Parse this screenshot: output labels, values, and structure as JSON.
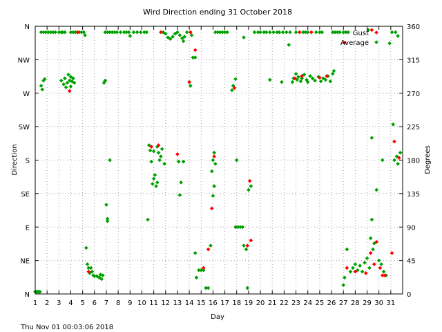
{
  "chart_data": {
    "type": "scatter",
    "title": "Wird Direction ending 31 October 2018",
    "xlabel": "Day",
    "ylabel_left": "Direction",
    "ylabel_right": "Degrees",
    "footer": "Thu Nov 01 00:03:06 2018",
    "xlim": [
      1,
      32
    ],
    "ylim": [
      0,
      360
    ],
    "grid": true,
    "legend_position": "top-right",
    "x_ticks": [
      {
        "value": 1,
        "label": "1"
      },
      {
        "value": 2,
        "label": "2"
      },
      {
        "value": 3,
        "label": "3"
      },
      {
        "value": 4,
        "label": "4"
      },
      {
        "value": 5,
        "label": "5"
      },
      {
        "value": 6,
        "label": "6"
      },
      {
        "value": 7,
        "label": "7"
      },
      {
        "value": 8,
        "label": "8"
      },
      {
        "value": 9,
        "label": "9"
      },
      {
        "value": 10,
        "label": "10"
      },
      {
        "value": 11,
        "label": "11"
      },
      {
        "value": 12,
        "label": "12"
      },
      {
        "value": 13,
        "label": "13"
      },
      {
        "value": 14,
        "label": "14"
      },
      {
        "value": 15,
        "label": "15"
      },
      {
        "value": 16,
        "label": "16"
      },
      {
        "value": 17,
        "label": "17"
      },
      {
        "value": 18,
        "label": "18"
      },
      {
        "value": 19,
        "label": "19"
      },
      {
        "value": 20,
        "label": "20"
      },
      {
        "value": 21,
        "label": "21"
      },
      {
        "value": 22,
        "label": "22"
      },
      {
        "value": 23,
        "label": "23"
      },
      {
        "value": 24,
        "label": "24"
      },
      {
        "value": 25,
        "label": "25"
      },
      {
        "value": 26,
        "label": "26"
      },
      {
        "value": 27,
        "label": "27"
      },
      {
        "value": 28,
        "label": "28"
      },
      {
        "value": 29,
        "label": "29"
      },
      {
        "value": 30,
        "label": "30"
      },
      {
        "value": 31,
        "label": "31"
      }
    ],
    "y_ticks_left": [
      {
        "value": 0,
        "label": "N"
      },
      {
        "value": 45,
        "label": "NE"
      },
      {
        "value": 90,
        "label": "E"
      },
      {
        "value": 135,
        "label": "SE"
      },
      {
        "value": 180,
        "label": "S"
      },
      {
        "value": 225,
        "label": "SW"
      },
      {
        "value": 270,
        "label": "W"
      },
      {
        "value": 315,
        "label": "NW"
      },
      {
        "value": 360,
        "label": "N"
      }
    ],
    "y_ticks_right": [
      {
        "value": 0,
        "label": "0"
      },
      {
        "value": 45,
        "label": "45"
      },
      {
        "value": 90,
        "label": "90"
      },
      {
        "value": 135,
        "label": "135"
      },
      {
        "value": 180,
        "label": "180"
      },
      {
        "value": 225,
        "label": "225"
      },
      {
        "value": 270,
        "label": "270"
      },
      {
        "value": 315,
        "label": "315"
      },
      {
        "value": 360,
        "label": "360"
      }
    ],
    "series": [
      {
        "name": "Gust",
        "color": "#ff0000",
        "points": [
          [
            3.9,
            273
          ],
          [
            4.6,
            352
          ],
          [
            5.5,
            30
          ],
          [
            10.8,
            198
          ],
          [
            11.4,
            200
          ],
          [
            11.6,
            352
          ],
          [
            13.0,
            188
          ],
          [
            14.0,
            285
          ],
          [
            14.1,
            352
          ],
          [
            14.5,
            328
          ],
          [
            15.2,
            35
          ],
          [
            15.6,
            60
          ],
          [
            15.9,
            115
          ],
          [
            16.1,
            185
          ],
          [
            17.8,
            277
          ],
          [
            18.9,
            65
          ],
          [
            19.1,
            152
          ],
          [
            19.2,
            72
          ],
          [
            22.9,
            290
          ],
          [
            23.3,
            352
          ],
          [
            23.5,
            293
          ],
          [
            24.3,
            352
          ],
          [
            25.0,
            291
          ],
          [
            25.6,
            293
          ],
          [
            27.1,
            338
          ],
          [
            27.3,
            35
          ],
          [
            28.0,
            30
          ],
          [
            28.9,
            28
          ],
          [
            29.3,
            55
          ],
          [
            29.4,
            355
          ],
          [
            29.6,
            40
          ],
          [
            29.8,
            70
          ],
          [
            30.1,
            35
          ],
          [
            30.3,
            25
          ],
          [
            30.5,
            25
          ],
          [
            31.1,
            55
          ],
          [
            31.3,
            205
          ],
          [
            31.7,
            183
          ]
        ]
      },
      {
        "name": "Average",
        "color": "#00a000",
        "points": [
          [
            1.0,
            3
          ],
          [
            1.1,
            3
          ],
          [
            1.2,
            3
          ],
          [
            1.3,
            3
          ],
          [
            1.4,
            3
          ],
          [
            1.5,
            280
          ],
          [
            1.6,
            275
          ],
          [
            1.7,
            287
          ],
          [
            1.8,
            289
          ],
          [
            1.5,
            352
          ],
          [
            1.7,
            352
          ],
          [
            1.9,
            352
          ],
          [
            2.1,
            352
          ],
          [
            2.3,
            352
          ],
          [
            2.5,
            352
          ],
          [
            2.7,
            352
          ],
          [
            3.0,
            352
          ],
          [
            3.2,
            352
          ],
          [
            3.3,
            352
          ],
          [
            3.5,
            352
          ],
          [
            3.2,
            287
          ],
          [
            3.4,
            282
          ],
          [
            3.5,
            290
          ],
          [
            3.7,
            284
          ],
          [
            3.8,
            295
          ],
          [
            3.9,
            287
          ],
          [
            4.0,
            292
          ],
          [
            4.1,
            286
          ],
          [
            4.2,
            290
          ],
          [
            4.3,
            284
          ],
          [
            3.6,
            278
          ],
          [
            4.0,
            279
          ],
          [
            4.0,
            352
          ],
          [
            4.2,
            352
          ],
          [
            4.4,
            352
          ],
          [
            4.7,
            352
          ],
          [
            4.9,
            352
          ],
          [
            5.1,
            352
          ],
          [
            5.2,
            348
          ],
          [
            5.3,
            62
          ],
          [
            5.4,
            40
          ],
          [
            5.5,
            35
          ],
          [
            5.6,
            28
          ],
          [
            5.7,
            35
          ],
          [
            5.8,
            30
          ],
          [
            5.9,
            25
          ],
          [
            6.0,
            24
          ],
          [
            6.2,
            24
          ],
          [
            6.4,
            22
          ],
          [
            6.5,
            26
          ],
          [
            6.6,
            20
          ],
          [
            6.7,
            25
          ],
          [
            6.8,
            284
          ],
          [
            6.9,
            287
          ],
          [
            7.0,
            120
          ],
          [
            7.1,
            98
          ],
          [
            7.1,
            101
          ],
          [
            7.3,
            180
          ],
          [
            6.9,
            352
          ],
          [
            7.1,
            352
          ],
          [
            7.3,
            352
          ],
          [
            7.5,
            352
          ],
          [
            7.7,
            352
          ],
          [
            7.9,
            352
          ],
          [
            8.2,
            352
          ],
          [
            8.5,
            352
          ],
          [
            8.7,
            352
          ],
          [
            8.9,
            352
          ],
          [
            9.0,
            347
          ],
          [
            9.3,
            352
          ],
          [
            9.6,
            352
          ],
          [
            9.9,
            352
          ],
          [
            10.2,
            352
          ],
          [
            10.4,
            352
          ],
          [
            10.5,
            100
          ],
          [
            10.6,
            200
          ],
          [
            10.7,
            193
          ],
          [
            10.8,
            178
          ],
          [
            10.9,
            148
          ],
          [
            11.0,
            155
          ],
          [
            11.1,
            160
          ],
          [
            11.2,
            145
          ],
          [
            11.3,
            150
          ],
          [
            11.0,
            192
          ],
          [
            11.3,
            198
          ],
          [
            11.4,
            190
          ],
          [
            11.5,
            180
          ],
          [
            11.6,
            185
          ],
          [
            11.7,
            195
          ],
          [
            11.9,
            175
          ],
          [
            11.8,
            352
          ],
          [
            12.0,
            350
          ],
          [
            12.2,
            345
          ],
          [
            12.4,
            343
          ],
          [
            12.6,
            346
          ],
          [
            12.8,
            350
          ],
          [
            13.0,
            352
          ],
          [
            13.2,
            348
          ],
          [
            13.4,
            344
          ],
          [
            13.5,
            340
          ],
          [
            13.6,
            346
          ],
          [
            13.1,
            178
          ],
          [
            13.2,
            133
          ],
          [
            13.3,
            150
          ],
          [
            13.5,
            178
          ],
          [
            13.8,
            352
          ],
          [
            14.1,
            352
          ],
          [
            14.2,
            348
          ],
          [
            14.3,
            318
          ],
          [
            14.5,
            318
          ],
          [
            14.1,
            280
          ],
          [
            14.0,
            285
          ],
          [
            14.6,
            22
          ],
          [
            14.8,
            32
          ],
          [
            15.0,
            32
          ],
          [
            15.2,
            32
          ],
          [
            14.5,
            55
          ],
          [
            15.4,
            8
          ],
          [
            15.6,
            8
          ],
          [
            15.8,
            65
          ],
          [
            16.0,
            180
          ],
          [
            16.1,
            190
          ],
          [
            16.2,
            175
          ],
          [
            15.9,
            165
          ],
          [
            16.1,
            145
          ],
          [
            16.0,
            132
          ],
          [
            16.2,
            352
          ],
          [
            16.4,
            352
          ],
          [
            16.6,
            352
          ],
          [
            16.8,
            352
          ],
          [
            17.0,
            352
          ],
          [
            17.2,
            352
          ],
          [
            17.6,
            274
          ],
          [
            17.7,
            280
          ],
          [
            17.9,
            289
          ],
          [
            18.0,
            180
          ],
          [
            17.9,
            90
          ],
          [
            18.1,
            90
          ],
          [
            18.3,
            90
          ],
          [
            18.5,
            90
          ],
          [
            18.6,
            65
          ],
          [
            18.8,
            60
          ],
          [
            18.9,
            8
          ],
          [
            19.0,
            140
          ],
          [
            19.2,
            145
          ],
          [
            18.6,
            345
          ],
          [
            19.5,
            352
          ],
          [
            19.8,
            352
          ],
          [
            20.0,
            352
          ],
          [
            20.3,
            352
          ],
          [
            20.5,
            352
          ],
          [
            20.8,
            352
          ],
          [
            20.8,
            288
          ],
          [
            21.1,
            352
          ],
          [
            21.4,
            352
          ],
          [
            21.6,
            352
          ],
          [
            21.9,
            352
          ],
          [
            22.2,
            352
          ],
          [
            22.5,
            352
          ],
          [
            22.4,
            335
          ],
          [
            21.8,
            285
          ],
          [
            22.7,
            285
          ],
          [
            22.8,
            290
          ],
          [
            23.0,
            296
          ],
          [
            23.1,
            288
          ],
          [
            23.2,
            292
          ],
          [
            23.4,
            286
          ],
          [
            23.5,
            290
          ],
          [
            23.7,
            295
          ],
          [
            23.9,
            288
          ],
          [
            24.0,
            285
          ],
          [
            24.2,
            293
          ],
          [
            24.4,
            290
          ],
          [
            24.6,
            287
          ],
          [
            24.9,
            292
          ],
          [
            25.1,
            286
          ],
          [
            25.3,
            290
          ],
          [
            25.5,
            288
          ],
          [
            25.7,
            293
          ],
          [
            25.9,
            286
          ],
          [
            26.1,
            296
          ],
          [
            26.2,
            300
          ],
          [
            23.0,
            352
          ],
          [
            23.6,
            352
          ],
          [
            23.8,
            352
          ],
          [
            24.0,
            352
          ],
          [
            24.7,
            352
          ],
          [
            25.0,
            352
          ],
          [
            25.2,
            352
          ],
          [
            26.1,
            352
          ],
          [
            26.3,
            352
          ],
          [
            26.5,
            352
          ],
          [
            26.7,
            352
          ],
          [
            27.0,
            352
          ],
          [
            27.2,
            352
          ],
          [
            27.4,
            352
          ],
          [
            27.0,
            12
          ],
          [
            27.1,
            22
          ],
          [
            27.3,
            60
          ],
          [
            27.6,
            30
          ],
          [
            27.8,
            35
          ],
          [
            28.0,
            40
          ],
          [
            28.2,
            32
          ],
          [
            28.4,
            38
          ],
          [
            28.6,
            30
          ],
          [
            28.8,
            42
          ],
          [
            29.0,
            48
          ],
          [
            29.2,
            35
          ],
          [
            29.3,
            75
          ],
          [
            29.4,
            100
          ],
          [
            29.5,
            60
          ],
          [
            29.6,
            68
          ],
          [
            29.8,
            140
          ],
          [
            30.0,
            45
          ],
          [
            30.2,
            40
          ],
          [
            30.3,
            180
          ],
          [
            30.4,
            30
          ],
          [
            30.6,
            25
          ],
          [
            29.4,
            210
          ],
          [
            29.1,
            355
          ],
          [
            30.9,
            337
          ],
          [
            31.1,
            352
          ],
          [
            31.3,
            180
          ],
          [
            31.5,
            185
          ],
          [
            31.2,
            228
          ],
          [
            31.6,
            175
          ],
          [
            31.8,
            190
          ],
          [
            31.4,
            352
          ],
          [
            31.6,
            347
          ]
        ]
      }
    ]
  }
}
